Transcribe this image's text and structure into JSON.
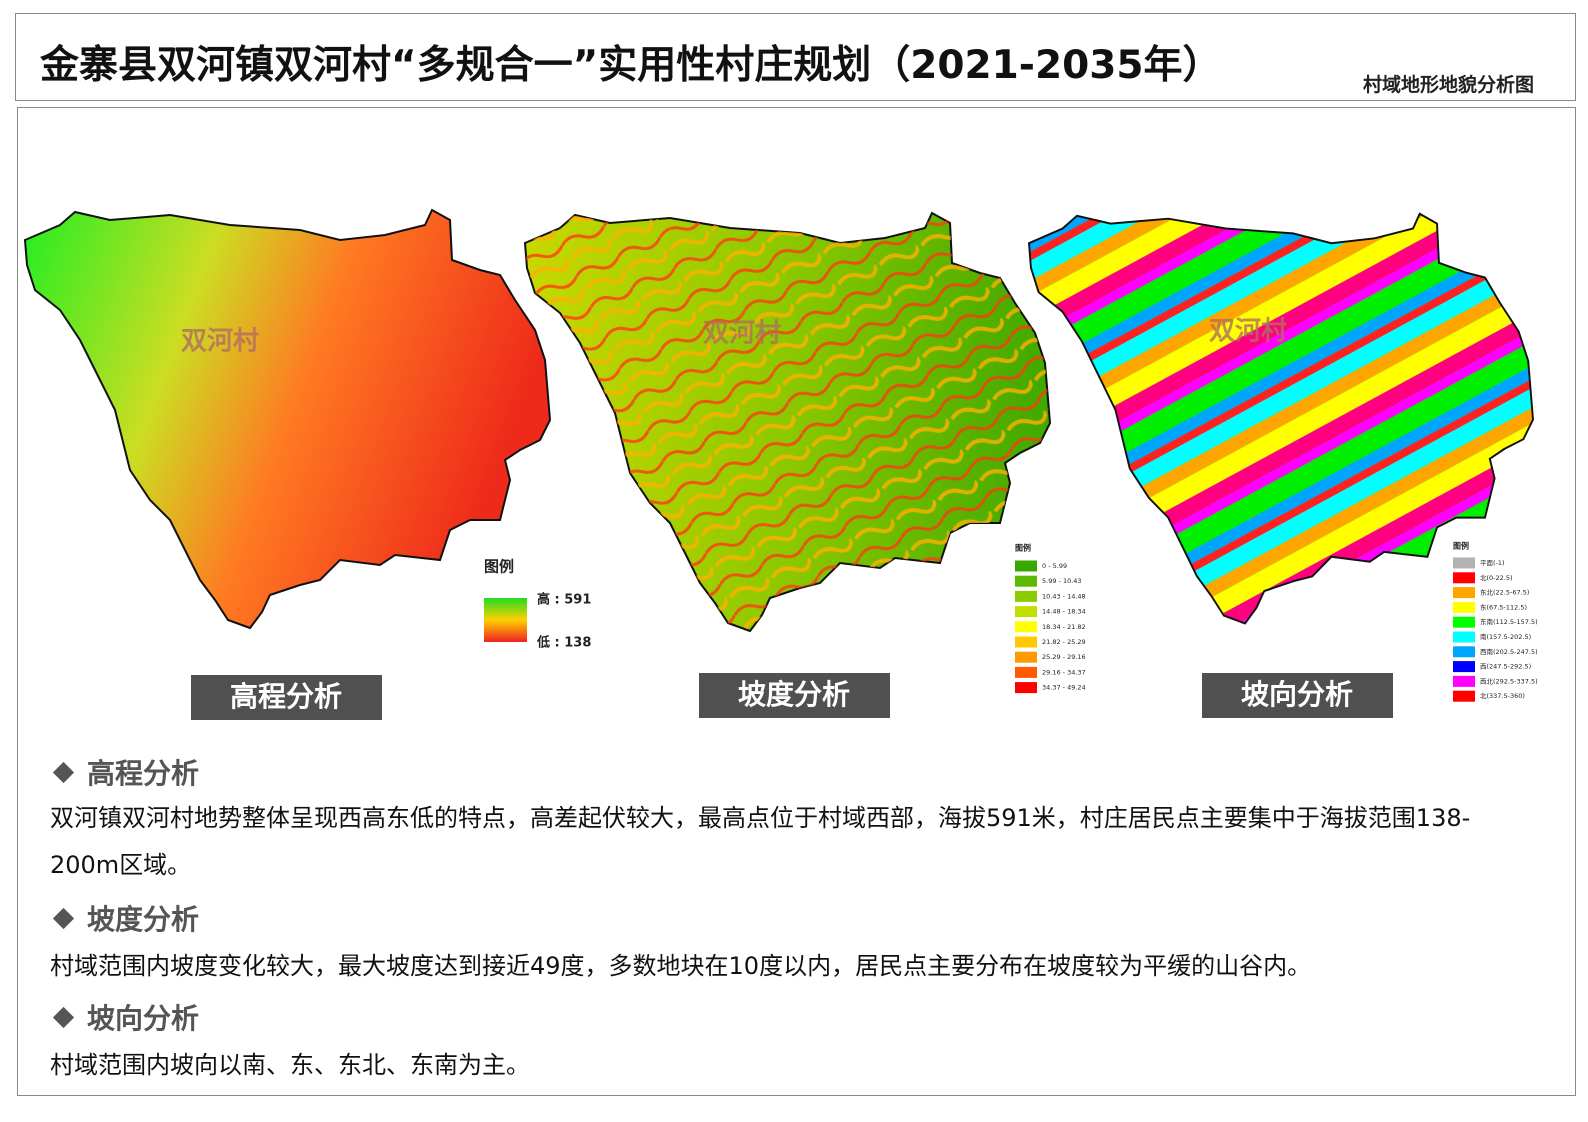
{
  "header": {
    "title": "金寨县双河镇双河村“多规合一”实用性村庄规划（2021-2035年）",
    "subtitle": "村域地形地貌分析图"
  },
  "maps": [
    {
      "village": "双河村",
      "caption": "高程分析",
      "legend": {
        "title": "图例",
        "items": [
          {
            "label": "高 : 591",
            "color": "#22dd22"
          },
          {
            "label": "低 : 138",
            "color": "#ee2222"
          }
        ]
      }
    },
    {
      "village": "双河村",
      "caption": "坡度分析",
      "legend": {
        "title": "图例",
        "items": [
          {
            "label": "0 - 5.99",
            "color": "#38a800"
          },
          {
            "label": "5.99 - 10.43",
            "color": "#5cb800"
          },
          {
            "label": "10.43 - 14.48",
            "color": "#8bcc00"
          },
          {
            "label": "14.48 - 18.34",
            "color": "#c2e000"
          },
          {
            "label": "18.34 - 21.82",
            "color": "#ffff00"
          },
          {
            "label": "21.82 - 25.29",
            "color": "#ffc800"
          },
          {
            "label": "25.29 - 29.16",
            "color": "#ff9a00"
          },
          {
            "label": "29.16 - 34.37",
            "color": "#ff5a00"
          },
          {
            "label": "34.37 - 49.24",
            "color": "#ff0000"
          }
        ]
      }
    },
    {
      "village": "双河村",
      "caption": "坡向分析",
      "legend": {
        "title": "图例",
        "items": [
          {
            "label": "平面(-1)",
            "color": "#b2b2b2"
          },
          {
            "label": "北(0-22.5)",
            "color": "#ff0000"
          },
          {
            "label": "东北(22.5-67.5)",
            "color": "#ffa500"
          },
          {
            "label": "东(67.5-112.5)",
            "color": "#ffff00"
          },
          {
            "label": "东南(112.5-157.5)",
            "color": "#00ff00"
          },
          {
            "label": "南(157.5-202.5)",
            "color": "#00ffff"
          },
          {
            "label": "西南(202.5-247.5)",
            "color": "#00a5ff"
          },
          {
            "label": "西(247.5-292.5)",
            "color": "#0000ff"
          },
          {
            "label": "西北(292.5-337.5)",
            "color": "#ff00ff"
          },
          {
            "label": "北(337.5-360)",
            "color": "#ff0000"
          }
        ]
      }
    }
  ],
  "sections": [
    {
      "heading": "高程分析",
      "body": "双河镇双河村地势整体呈现西高东低的特点，高差起伏较大，最高点位于村域西部，海拔591米，村庄居民点主要集中于海拔范围138-200m区域。"
    },
    {
      "heading": "坡度分析",
      "body": "村域范围内坡度变化较大，最大坡度达到接近49度，多数地块在10度以内，居民点主要分布在坡度较为平缓的山谷内。"
    },
    {
      "heading": "坡向分析",
      "body": "村域范围内坡向以南、东、东北、东南为主。"
    }
  ]
}
